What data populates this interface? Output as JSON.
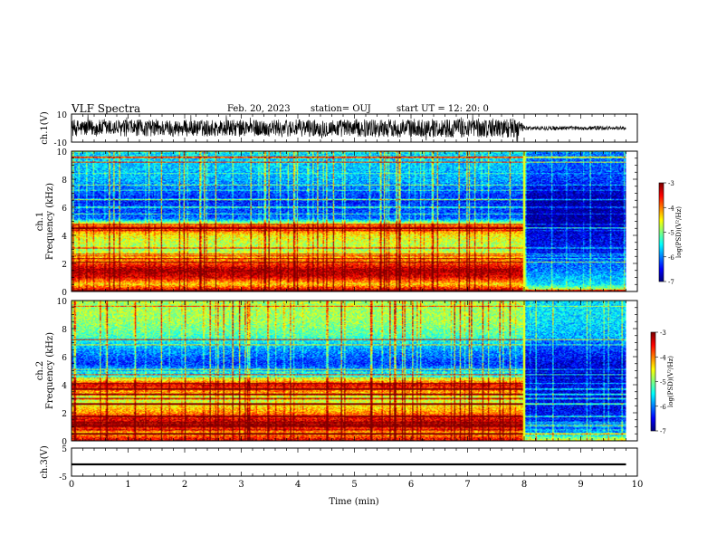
{
  "header": {
    "title": "VLF Spectra",
    "date": "Feb. 20, 2023",
    "station": "station= OUJ",
    "start": "start  UT  =  12: 20: 0"
  },
  "chart_data": [
    {
      "type": "line",
      "panel": "ch1-waveform",
      "ylabel": "ch.1(V)",
      "ylim": [
        -10,
        10
      ],
      "yticks": [
        10,
        -10
      ],
      "xlim": [
        0,
        10
      ],
      "envelope": [
        {
          "x_min": 0.0,
          "amplitude_v": 6
        },
        {
          "x_min": 3.0,
          "amplitude_v": 6
        },
        {
          "x_min": 7.9,
          "amplitude_v": 7
        },
        {
          "x_min": 8.0,
          "amplitude_v": 1.5
        },
        {
          "x_min": 9.8,
          "amplitude_v": 1.5
        }
      ]
    },
    {
      "type": "heatmap",
      "panel": "ch1-spectrogram",
      "ylabel": "ch.1\nFrequency (kHz)",
      "ylim": [
        0,
        10
      ],
      "yticks": [
        0,
        2,
        4,
        6,
        8,
        10
      ],
      "xlim": [
        0,
        10
      ],
      "data_end_min": 9.8,
      "transition_min": 8.0,
      "colorbar": {
        "label": "log(PSD)(V²/Hz)",
        "range": [
          -7,
          -3
        ],
        "ticks": [
          -3,
          -4,
          -5,
          -6,
          -7
        ]
      },
      "profile": [
        {
          "f_khz": 0.0,
          "log_psd_before": -3.2,
          "log_psd_after": -4.5
        },
        {
          "f_khz": 0.5,
          "log_psd_before": -4.4,
          "log_psd_after": -5.6
        },
        {
          "f_khz": 1.0,
          "log_psd_before": -3.4,
          "log_psd_after": -5.8
        },
        {
          "f_khz": 1.5,
          "log_psd_before": -3.1,
          "log_psd_after": -6.0
        },
        {
          "f_khz": 2.0,
          "log_psd_before": -3.8,
          "log_psd_after": -6.1
        },
        {
          "f_khz": 3.0,
          "log_psd_before": -4.9,
          "log_psd_after": -6.5
        },
        {
          "f_khz": 4.0,
          "log_psd_before": -4.5,
          "log_psd_after": -6.6
        },
        {
          "f_khz": 4.6,
          "log_psd_before": -3.6,
          "log_psd_after": -6.8
        },
        {
          "f_khz": 5.2,
          "log_psd_before": -6.1,
          "log_psd_after": -6.9
        },
        {
          "f_khz": 6.5,
          "log_psd_before": -6.4,
          "log_psd_after": -6.9
        },
        {
          "f_khz": 8.0,
          "log_psd_before": -5.8,
          "log_psd_after": -6.3
        },
        {
          "f_khz": 10.0,
          "log_psd_before": -5.6,
          "log_psd_after": -6.0
        }
      ]
    },
    {
      "type": "heatmap",
      "panel": "ch2-spectrogram",
      "ylabel": "ch.2\nFrequency (kHz)",
      "ylim": [
        0,
        10
      ],
      "yticks": [
        0,
        2,
        4,
        6,
        8,
        10
      ],
      "xlim": [
        0,
        10
      ],
      "data_end_min": 9.8,
      "transition_min": 8.0,
      "colorbar": {
        "label": "log(PSD)(V²/Hz)",
        "range": [
          -7,
          -3
        ],
        "ticks": [
          -3,
          -4,
          -5,
          -6,
          -7
        ]
      },
      "profile": [
        {
          "f_khz": 0.0,
          "log_psd_before": -3.3,
          "log_psd_after": -4.6
        },
        {
          "f_khz": 0.5,
          "log_psd_before": -4.3,
          "log_psd_after": -5.8
        },
        {
          "f_khz": 1.0,
          "log_psd_before": -3.3,
          "log_psd_after": -6.2
        },
        {
          "f_khz": 1.5,
          "log_psd_before": -3.4,
          "log_psd_after": -6.4
        },
        {
          "f_khz": 2.0,
          "log_psd_before": -4.1,
          "log_psd_after": -6.5
        },
        {
          "f_khz": 3.0,
          "log_psd_before": -4.8,
          "log_psd_after": -6.6
        },
        {
          "f_khz": 4.0,
          "log_psd_before": -3.4,
          "log_psd_after": -6.5
        },
        {
          "f_khz": 4.6,
          "log_psd_before": -5.4,
          "log_psd_after": -6.7
        },
        {
          "f_khz": 5.5,
          "log_psd_before": -6.3,
          "log_psd_after": -6.6
        },
        {
          "f_khz": 6.5,
          "log_psd_before": -5.9,
          "log_psd_after": -6.3
        },
        {
          "f_khz": 7.5,
          "log_psd_before": -5.2,
          "log_psd_after": -5.8
        },
        {
          "f_khz": 8.5,
          "log_psd_before": -4.9,
          "log_psd_after": -5.6
        },
        {
          "f_khz": 10.0,
          "log_psd_before": -4.8,
          "log_psd_after": -5.6
        }
      ]
    },
    {
      "type": "line",
      "panel": "ch3-waveform",
      "ylabel": "ch.3(V)",
      "ylim": [
        -5,
        5
      ],
      "yticks": [
        5,
        -5
      ],
      "xlim": [
        0,
        10
      ],
      "xlabel": "Time  (min)",
      "xticks": [
        0,
        1,
        2,
        3,
        4,
        5,
        6,
        7,
        8,
        9,
        10
      ],
      "level": [
        {
          "x_min": 0.0,
          "v": -0.8
        },
        {
          "x_min": 9.8,
          "v": -0.8
        }
      ],
      "band_halfwidth_v": 0.35
    }
  ]
}
